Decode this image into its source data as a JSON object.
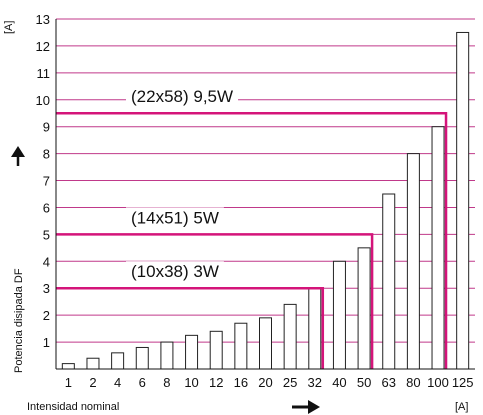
{
  "chart_data": {
    "type": "bar",
    "categories": [
      "1",
      "2",
      "4",
      "6",
      "8",
      "10",
      "12",
      "16",
      "20",
      "25",
      "32",
      "40",
      "50",
      "63",
      "80",
      "100",
      "125"
    ],
    "values": [
      0.2,
      0.4,
      0.6,
      0.8,
      1.0,
      1.25,
      1.4,
      1.7,
      1.9,
      2.4,
      3.0,
      4.0,
      4.5,
      6.5,
      8.0,
      9.0,
      12.5
    ],
    "ylabel": "Potencia disipada DF",
    "yunit": "[A]",
    "xlabel": "Intensidad nominal",
    "xunit": "[A]",
    "ylim": [
      0,
      13
    ],
    "yticks": [
      1,
      2,
      3,
      4,
      5,
      6,
      7,
      8,
      9,
      10,
      11,
      12,
      13
    ],
    "grid": true,
    "grid_color": "#c0398a",
    "bar_fill": "#ffffff",
    "bar_stroke": "#222222",
    "annotations": [
      {
        "text": "(10x38) 3W",
        "y": 3,
        "x_end": "32",
        "color": "#d4147a"
      },
      {
        "text": "(14x51) 5W",
        "y": 5,
        "x_end": "50",
        "color": "#d4147a"
      },
      {
        "text": "(22x58) 9,5W",
        "y": 9.5,
        "x_end": "100",
        "color": "#d4147a"
      }
    ]
  }
}
